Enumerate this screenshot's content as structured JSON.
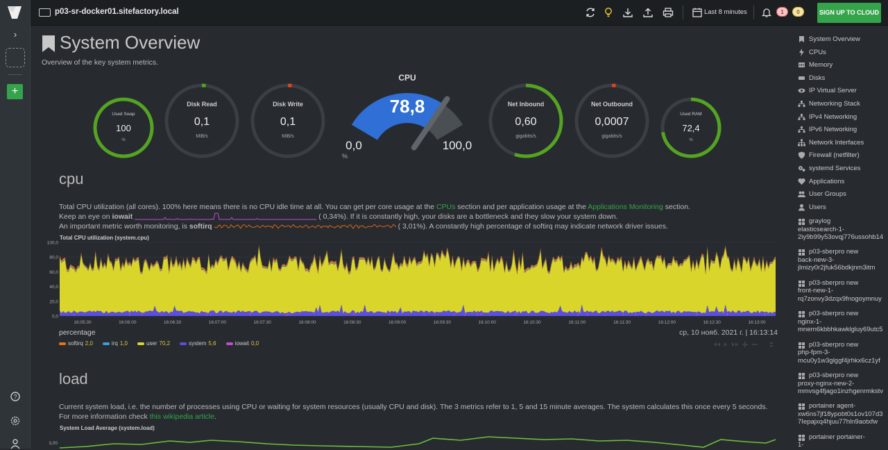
{
  "topbar": {
    "hostname": "p03-sr-docker01.sitefactory.local",
    "time_range": "Last 8 minutes",
    "alerts_red": "1",
    "alerts_yellow": "0",
    "signup": "SIGN UP TO CLOUD"
  },
  "page": {
    "title": "System Overview",
    "subtitle": "Overview of the key system metrics."
  },
  "gauges": {
    "swap": {
      "label": "Used Swap",
      "value": "100",
      "unit": "%",
      "fill": 1.0
    },
    "disk_read": {
      "label": "Disk Read",
      "value": "0,1",
      "unit": "MiB/s",
      "fill": 0.01
    },
    "disk_write": {
      "label": "Disk Write",
      "value": "0,1",
      "unit": "MiB/s",
      "fill": 0.01
    },
    "cpu": {
      "label": "CPU",
      "value": "78,8",
      "min": "0,0",
      "max": "100,0",
      "unit": "%",
      "fill": 0.788
    },
    "net_in": {
      "label": "Net Inbound",
      "value": "0,60",
      "unit": "gigabits/s",
      "fill": 0.55
    },
    "net_out": {
      "label": "Net Outbound",
      "value": "0,0007",
      "unit": "gigabits/s",
      "fill": 0.01
    },
    "ram": {
      "label": "Used RAM",
      "value": "72,4",
      "unit": "%",
      "fill": 0.724
    }
  },
  "cpu_section": {
    "heading": "cpu",
    "line1_a": "Total CPU utilization (all cores). 100% here means there is no CPU idle time at all. You can get per core usage at the ",
    "line1_link1": "CPUs",
    "line1_b": " section and per application usage at the ",
    "line1_link2": "Applications Monitoring",
    "line1_c": " section.",
    "line2_a": "Keep an eye on ",
    "line2_key": "iowait",
    "line2_b": "( 0,34%). If it is constantly high, your disks are a bottleneck and they slow your system down.",
    "line3_a": "An important metric worth monitoring, is ",
    "line3_key": "softirq",
    "line3_b": "( 3,01%). A constantly high percentage of softirq may indicate network driver issues.",
    "chart_title": "Total CPU utilization (system.cpu)",
    "units": "percentage",
    "timestamp": "ср, 10 нояб. 2021 г. | 16:13:14"
  },
  "legend": [
    {
      "name": "softirq",
      "value": "2,0",
      "color": "#e8711a"
    },
    {
      "name": "irq",
      "value": "1,0",
      "color": "#3aa0d8"
    },
    {
      "name": "user",
      "value": "70,2",
      "color": "#d9d52a"
    },
    {
      "name": "system",
      "value": "5,6",
      "color": "#5a4fe0"
    },
    {
      "name": "iowait",
      "value": "0,0",
      "color": "#c04ed0"
    }
  ],
  "load_section": {
    "heading": "load",
    "text_a": "Current system load, i.e. the number of processes using CPU or waiting for system resources (usually CPU and disk). The 3 metrics refer to 1, 5 and 15 minute averages. The system calculates this once every 5 seconds. For more information check ",
    "text_link": "this wikipedia article",
    "text_b": ".",
    "chart_title": "System Load Average (system.load)",
    "y_top": "3,00"
  },
  "chart_data": {
    "type": "area",
    "title": "Total CPU utilization (system.cpu)",
    "ylabel": "percentage",
    "ylim": [
      0,
      100
    ],
    "y_ticks": [
      "100,0",
      "80,0",
      "60,0",
      "40,0",
      "20,0",
      "0,0"
    ],
    "x_ticks": [
      "16:05:30",
      "16:06:00",
      "16:06:30",
      "16:07:00",
      "16:07:30",
      "16:08:00",
      "16:08:30",
      "16:09:00",
      "16:09:30",
      "16:10:00",
      "16:10:30",
      "16:11:00",
      "16:11:30",
      "16:12:00",
      "16:12:30",
      "16:13:00"
    ],
    "series": [
      {
        "name": "system",
        "values": [
          5.6
        ]
      },
      {
        "name": "user",
        "values": [
          70.2
        ]
      },
      {
        "name": "irq",
        "values": [
          1.0
        ]
      },
      {
        "name": "softirq",
        "values": [
          2.0
        ]
      },
      {
        "name": "iowait",
        "values": [
          0.0
        ]
      }
    ]
  },
  "nav": {
    "items": [
      "System Overview",
      "CPUs",
      "Memory",
      "Disks",
      "IP Virtual Server",
      "Networking Stack",
      "IPv4 Networking",
      "IPv6 Networking",
      "Network Interfaces",
      "Firewall (netfilter)",
      "systemd Services",
      "Applications",
      "User Groups",
      "Users"
    ],
    "containers": [
      [
        "graylog",
        "elasticsearch-1-",
        "2iy9b99y53ovqj776ussohb14"
      ],
      [
        "p03-sberpro new",
        "back-new-3-",
        "jlmizy0r2jfuk56bdkjnm3itm"
      ],
      [
        "p03-sberpro new",
        "front-new-1-",
        "rq7zonvy3dzqx9fnogoymnuy"
      ],
      [
        "p03-sberpro new",
        "nginx-1-",
        "mnern6kbbhkawklgluy69utc5"
      ],
      [
        "p03-sberpro new",
        "php-fpm-3-",
        "mcu0y1w3glggf4jrhkx6cz1yf"
      ],
      [
        "p03-sberpro new",
        "proxy-nginx-new-2-",
        "mmvsg4fjago1inzhgenrmkstv"
      ],
      [
        "portainer agent-",
        "xw6ns7jf18ypobt0s1ov107d3",
        "7Iepajxq4hjuu77hln9aotxfw"
      ],
      [
        "portainer portainer-",
        "1-",
        ""
      ]
    ]
  }
}
